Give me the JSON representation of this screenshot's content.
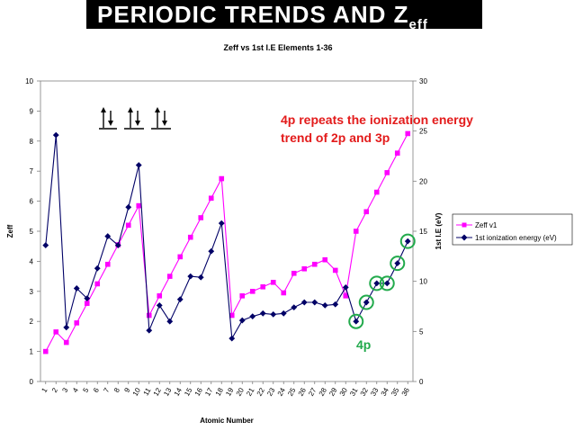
{
  "slide": {
    "title_main": "PERIODIC TRENDS AND Z",
    "title_sub": "eff",
    "annotation": [
      "4p repeats the ionization energy",
      "trend of 2p and 3p"
    ],
    "label_4p": "4p",
    "annotation_color": "#e31b1b",
    "highlight_color": "#22aa4c",
    "arrow_icons": [
      "up-down-arrows-icon",
      "up-down-arrows-icon",
      "up-down-arrows-icon"
    ]
  },
  "chart_data": {
    "type": "line",
    "title": "Zeff vs 1st I.E Elements 1-36",
    "xlabel": "Atomic Number",
    "ylabel_left": "Zeff",
    "ylabel_right": "1st I.E (eV)",
    "categories": [
      1,
      2,
      3,
      4,
      5,
      6,
      7,
      8,
      9,
      10,
      11,
      12,
      13,
      14,
      15,
      16,
      17,
      18,
      19,
      20,
      21,
      22,
      23,
      24,
      25,
      26,
      27,
      28,
      29,
      30,
      31,
      32,
      33,
      34,
      35,
      36
    ],
    "ylim_left": [
      0,
      10
    ],
    "yticks_left": [
      0,
      1,
      2,
      3,
      4,
      5,
      6,
      7,
      8,
      9,
      10
    ],
    "ylim_right": [
      0,
      30
    ],
    "yticks_right": [
      0,
      5,
      10,
      15,
      20,
      25,
      30
    ],
    "legend_position": "right",
    "series": [
      {
        "name": "Zeff v1",
        "axis": "left",
        "color": "#ff00ff",
        "marker": "square",
        "values": [
          1.0,
          1.65,
          1.3,
          1.95,
          2.6,
          3.25,
          3.9,
          4.55,
          5.2,
          5.85,
          2.2,
          2.85,
          3.5,
          4.15,
          4.8,
          5.45,
          6.1,
          6.75,
          2.2,
          2.85,
          3.0,
          3.15,
          3.3,
          2.95,
          3.6,
          3.75,
          3.9,
          4.05,
          3.7,
          2.85,
          5.0,
          5.65,
          6.3,
          6.95,
          7.6,
          8.25
        ]
      },
      {
        "name": "1st ionization energy (eV)",
        "axis": "right",
        "color": "#000066",
        "marker": "diamond",
        "values": [
          13.6,
          24.6,
          5.4,
          9.3,
          8.3,
          11.3,
          14.5,
          13.6,
          17.4,
          21.6,
          5.1,
          7.6,
          6.0,
          8.2,
          10.5,
          10.4,
          13.0,
          15.8,
          4.3,
          6.1,
          6.5,
          6.8,
          6.7,
          6.8,
          7.4,
          7.9,
          7.9,
          7.6,
          7.7,
          9.4,
          6.0,
          7.9,
          9.8,
          9.8,
          11.8,
          14.0
        ]
      }
    ],
    "highlighted_elements": [
      31,
      32,
      33,
      34,
      35,
      36
    ]
  }
}
